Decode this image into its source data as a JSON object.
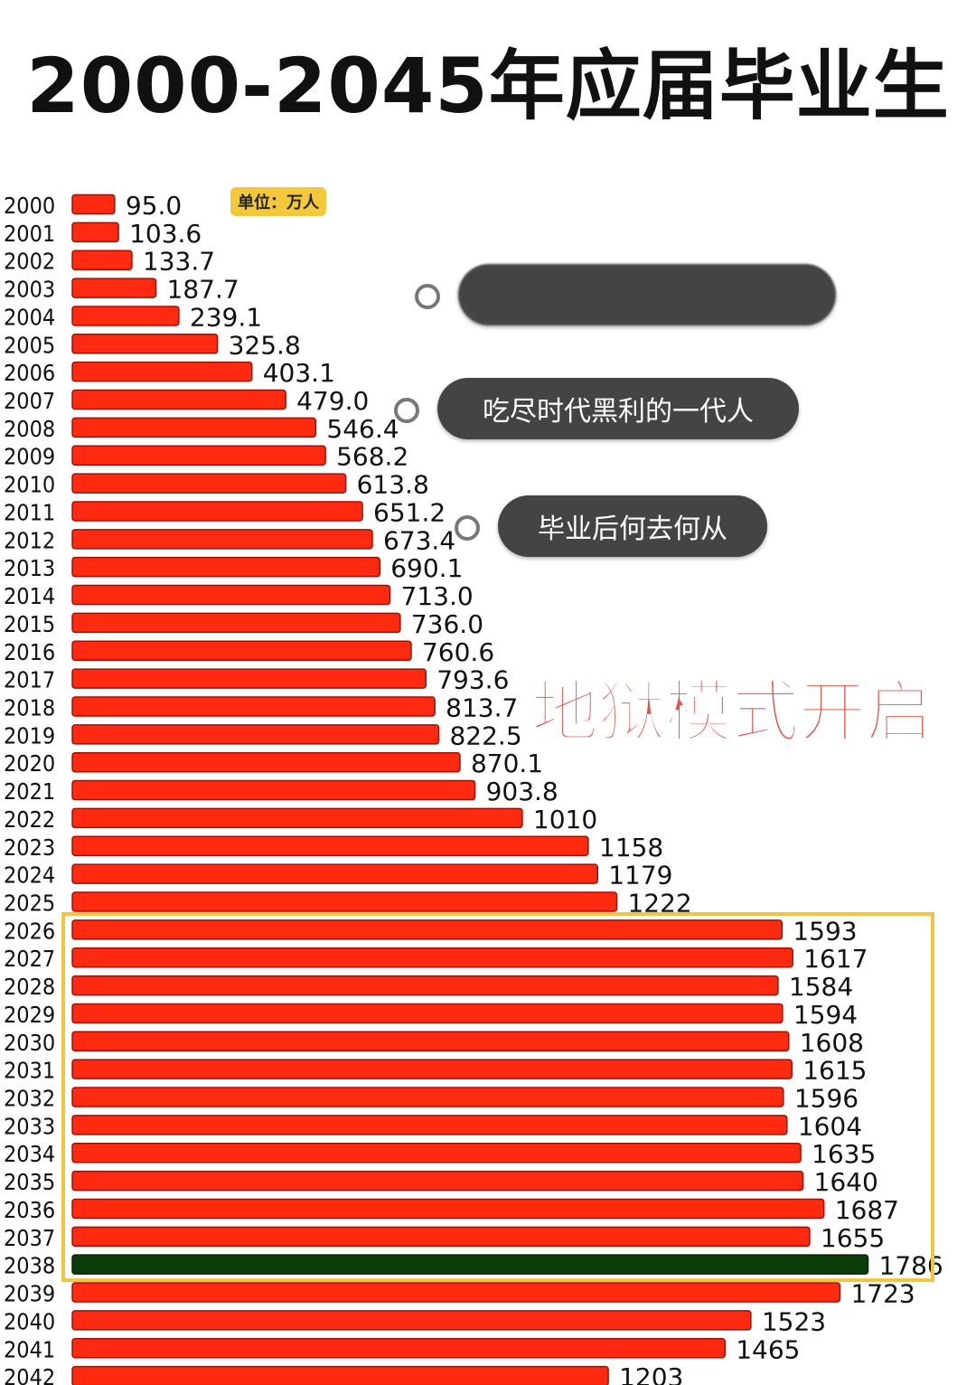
{
  "title": "2000-2045年应届毕业生",
  "unit_badge": "单位：万人",
  "overlays": {
    "bubble_blurred": "",
    "bubble_1": "吃尽时代黑利的一代人",
    "bubble_2": "毕业后何去何从",
    "headline": "地狱模式开启"
  },
  "colors": {
    "bar": "#ff2a10",
    "highlight_bar": "#0b3d0b",
    "highlight_box": "#f0c640",
    "unit_badge": "#f3c83a"
  },
  "chart_data": {
    "type": "bar",
    "orientation": "horizontal",
    "title": "2000-2045年应届毕业生",
    "unit": "万人",
    "categories": [
      "2000",
      "2001",
      "2002",
      "2003",
      "2004",
      "2005",
      "2006",
      "2007",
      "2008",
      "2009",
      "2010",
      "2011",
      "2012",
      "2013",
      "2014",
      "2015",
      "2016",
      "2017",
      "2018",
      "2019",
      "2020",
      "2021",
      "2022",
      "2023",
      "2024",
      "2025",
      "2026",
      "2027",
      "2028",
      "2029",
      "2030",
      "2031",
      "2032",
      "2033",
      "2034",
      "2035",
      "2036",
      "2037",
      "2038",
      "2039",
      "2040",
      "2041",
      "2042"
    ],
    "values": [
      95.0,
      103.6,
      133.7,
      187.7,
      239.1,
      325.8,
      403.1,
      479.0,
      546.4,
      568.2,
      613.8,
      651.2,
      673.4,
      690.1,
      713.0,
      736.0,
      760.6,
      793.6,
      813.7,
      822.5,
      870.1,
      903.8,
      1010,
      1158,
      1179,
      1222,
      1593,
      1617,
      1584,
      1594,
      1608,
      1615,
      1596,
      1604,
      1635,
      1640,
      1687,
      1655,
      1786,
      1723,
      1523,
      1465,
      1203
    ],
    "labels": [
      "95.0",
      "103.6",
      "133.7",
      "187.7",
      "239.1",
      "325.8",
      "403.1",
      "479.0",
      "546.4",
      "568.2",
      "613.8",
      "651.2",
      "673.4",
      "690.1",
      "713.0",
      "736.0",
      "760.6",
      "793.6",
      "813.7",
      "822.5",
      "870.1",
      "903.8",
      "1010",
      "1158",
      "1179",
      "1222",
      "1593",
      "1617",
      "1584",
      "1594",
      "1608",
      "1615",
      "1596",
      "1604",
      "1635",
      "1640",
      "1687",
      "1655",
      "1786",
      "1723",
      "1523",
      "1465",
      "1203"
    ],
    "highlighted_category": "2038",
    "highlight_range": [
      "2026",
      "2038"
    ],
    "grid": false,
    "legend": "none"
  }
}
